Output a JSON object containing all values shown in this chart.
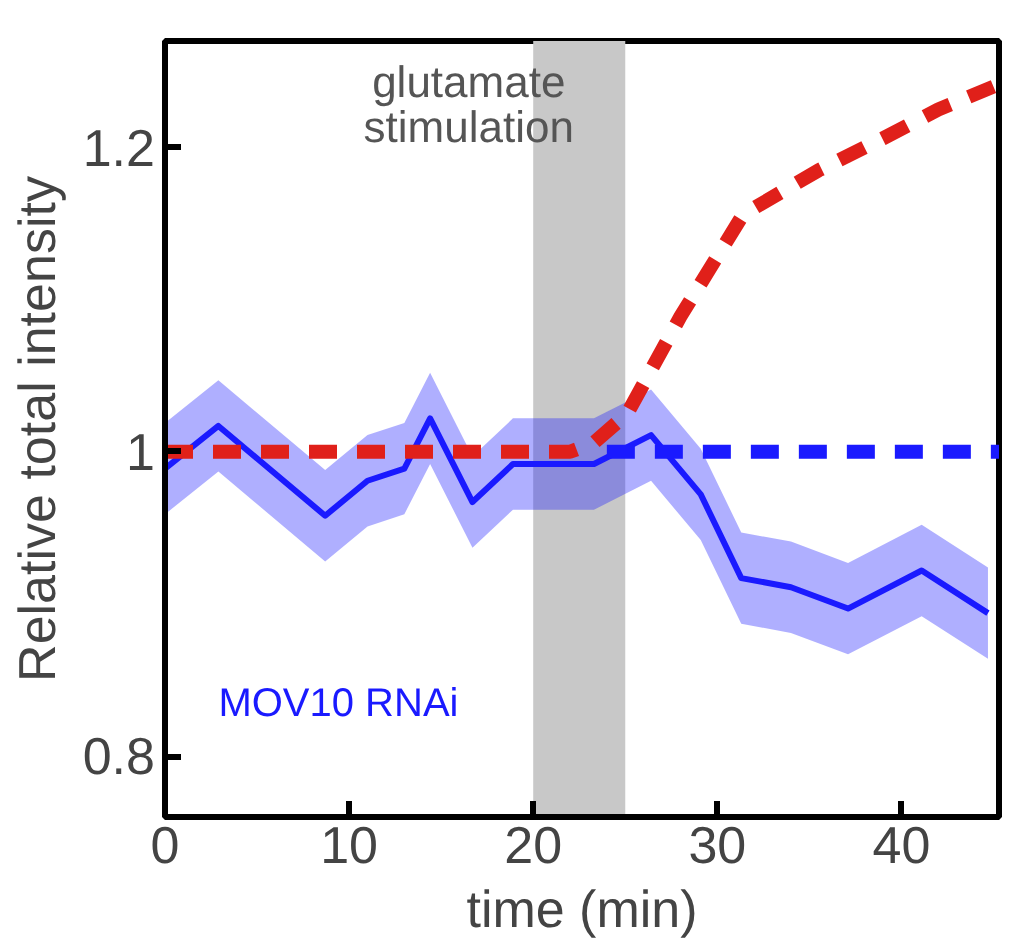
{
  "chart_data": {
    "type": "line",
    "xlabel": "time (min)",
    "ylabel": "Relative total intensity",
    "xlim": [
      0,
      45.3
    ],
    "ylim": [
      0.76,
      1.27
    ],
    "xticks": [
      0,
      10,
      20,
      30,
      40
    ],
    "yticks": [
      0.8,
      1,
      1.2
    ],
    "grid": false,
    "legend": false,
    "marker": "none",
    "bands": [
      {
        "axis": "x",
        "from": 20,
        "to": 25,
        "label": "glutamate\nstimulation",
        "color": "#c8c8c8"
      }
    ],
    "series": [
      {
        "name": "MOV10 RNAi",
        "color": "#1a1aff",
        "line_style": "solid",
        "x": [
          0,
          2.9,
          8.7,
          11,
          13,
          14.4,
          16.7,
          18.9,
          23.3,
          26.4,
          29.1,
          31.3,
          34,
          37.1,
          41.1,
          44.7
        ],
        "values": [
          0.989,
          1.017,
          0.958,
          0.981,
          0.989,
          1.022,
          0.967,
          0.992,
          0.992,
          1.011,
          0.972,
          0.917,
          0.911,
          0.897,
          0.922,
          0.894
        ],
        "lower": [
          0.959,
          0.987,
          0.928,
          0.951,
          0.959,
          0.992,
          0.937,
          0.962,
          0.962,
          0.981,
          0.942,
          0.887,
          0.881,
          0.867,
          0.892,
          0.864
        ],
        "upper": [
          1.019,
          1.047,
          0.988,
          1.011,
          1.019,
          1.052,
          0.997,
          1.022,
          1.022,
          1.041,
          1.002,
          0.947,
          0.941,
          0.927,
          0.952,
          0.924
        ]
      },
      {
        "color": "#1a1aff",
        "line_style": "dashed",
        "x": [
          24,
          45.3
        ],
        "values": [
          1,
          1
        ]
      },
      {
        "color": "#e0201a",
        "line_style": "dashed",
        "x": [
          0,
          22,
          23.3,
          25.1,
          28,
          31.4,
          35.5,
          39,
          42,
          45
        ],
        "values": [
          1,
          1,
          1.006,
          1.025,
          1.089,
          1.156,
          1.185,
          1.206,
          1.225,
          1.24
        ]
      }
    ]
  }
}
